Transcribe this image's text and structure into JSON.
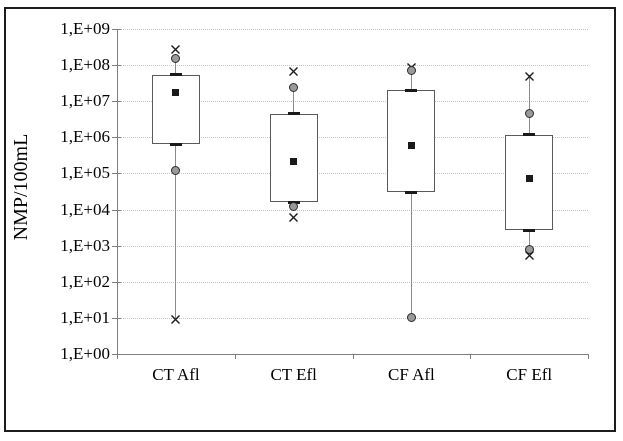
{
  "figure": {
    "background": "#ffffff",
    "border_color": "#1c1c1c"
  },
  "chart_data": {
    "type": "box",
    "title": "",
    "ylabel": "NMP/100mL",
    "xlabel": "",
    "grid": "horizontal-dotted",
    "legend": "none",
    "y_axis": {
      "scale": "log",
      "min": 1,
      "max": 1000000000,
      "tick_labels": [
        "1,E+00",
        "1,E+01",
        "1,E+02",
        "1,E+03",
        "1,E+04",
        "1,E+05",
        "1,E+06",
        "1,E+07",
        "1,E+08",
        "1,E+09"
      ]
    },
    "categories": [
      "CT Afl",
      "CT Efl",
      "CF Afl",
      "CF Efl"
    ],
    "series": [
      {
        "category": "CT Afl",
        "q3": 55000000,
        "q1": 650000,
        "mean": 17000000,
        "whisker_high": 150000000,
        "whisker_low": 10,
        "outliers": [
          {
            "marker": "x",
            "value": 300000000
          },
          {
            "marker": "circle",
            "value": 150000000
          },
          {
            "marker": "circle",
            "value": 120000
          },
          {
            "marker": "x",
            "value": 10
          }
        ]
      },
      {
        "category": "CT Efl",
        "q3": 4500000,
        "q1": 16000,
        "mean": 220000,
        "whisker_high": 24000000,
        "whisker_low": 12000,
        "outliers": [
          {
            "marker": "x",
            "value": 75000000
          },
          {
            "marker": "circle",
            "value": 24000000
          },
          {
            "marker": "circle",
            "value": 12000
          },
          {
            "marker": "x",
            "value": 7000
          }
        ]
      },
      {
        "category": "CF Afl",
        "q3": 20000000,
        "q1": 30000,
        "mean": 600000,
        "whisker_high": 70000000,
        "whisker_low": 10,
        "outliers": [
          {
            "marker": "x",
            "value": 100000000
          },
          {
            "marker": "circle",
            "value": 70000000
          },
          {
            "marker": "circle",
            "value": 10
          }
        ]
      },
      {
        "category": "CF Efl",
        "q3": 1200000,
        "q1": 2700,
        "mean": 75000,
        "whisker_high": 55000000,
        "whisker_low": 800,
        "outliers": [
          {
            "marker": "x",
            "value": 55000000
          },
          {
            "marker": "circle",
            "value": 4500000
          },
          {
            "marker": "circle",
            "value": 800
          },
          {
            "marker": "x",
            "value": 600
          }
        ]
      }
    ],
    "colors": {
      "box_border": "#5a5a5a",
      "whisker": "#8c8c8c",
      "gridline": "#c3c3c3",
      "axis": "#7f7f7f",
      "circle_fill": "#9a9a9a",
      "marker": "#1a1a1a"
    }
  }
}
